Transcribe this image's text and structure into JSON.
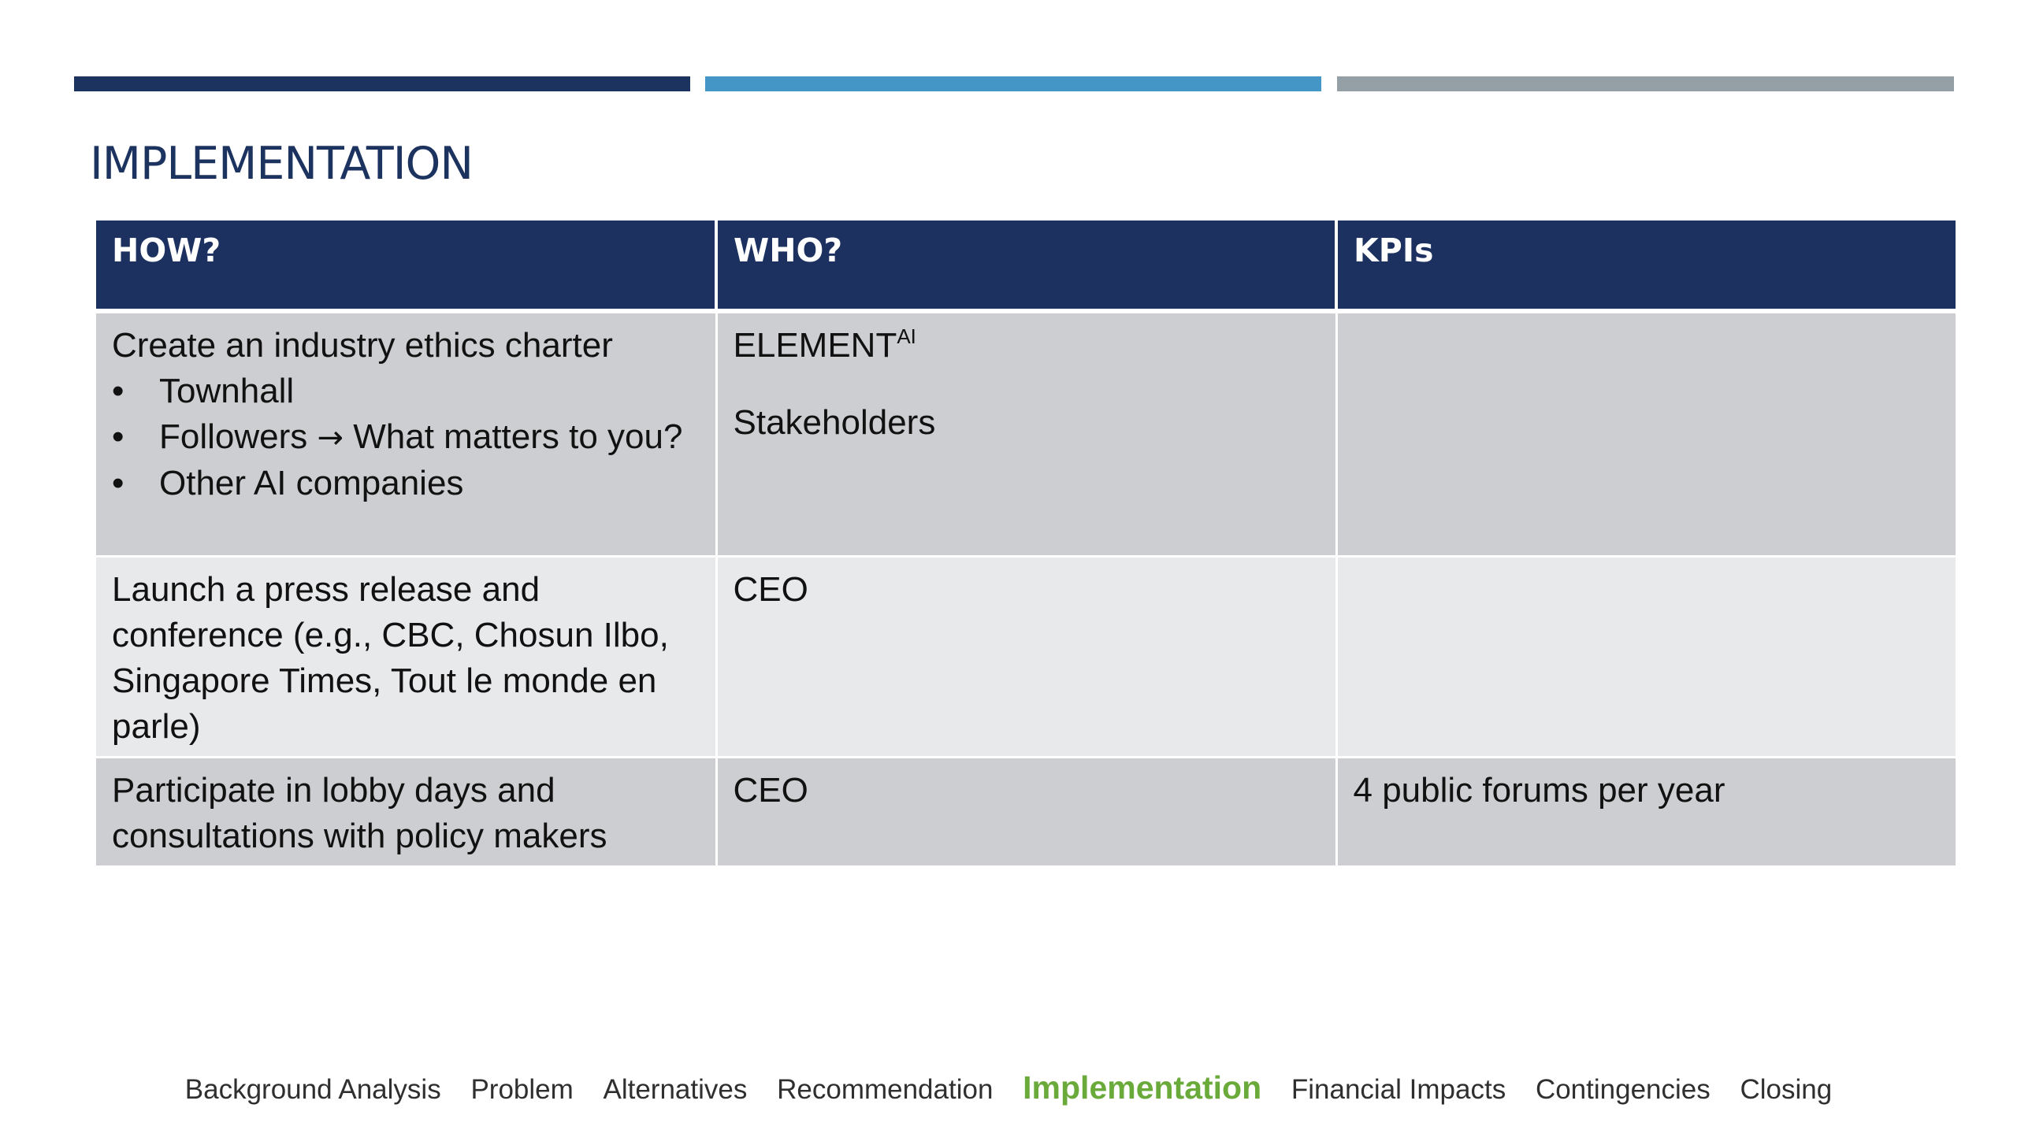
{
  "slide": {
    "title": "IMPLEMENTATION",
    "accent_colors": [
      "#1c3360",
      "#4396c5",
      "#959fa6"
    ]
  },
  "table": {
    "headers": [
      "HOW?",
      "WHO?",
      "KPIs"
    ],
    "rows": [
      {
        "how_intro": "Create an industry ethics charter",
        "how_bullets": [
          {
            "text": "Townhall"
          },
          {
            "text_before": "Followers",
            "arrow": "→",
            "text_after": "What matters to you?"
          },
          {
            "text": "Other AI companies"
          }
        ],
        "who": [
          "ELEMENT",
          "AI",
          "Stakeholders"
        ],
        "kpi": ""
      },
      {
        "how": "Launch a press release and conference (e.g., CBC, Chosun Ilbo, Singapore Times, Tout le monde en parle)",
        "who": "CEO",
        "kpi": ""
      },
      {
        "how": "Participate in lobby days and consultations with policy makers",
        "who": "CEO",
        "kpi": "4 public forums per year"
      }
    ]
  },
  "nav": {
    "items": [
      "Background Analysis",
      "Problem",
      "Alternatives",
      "Recommendation",
      "Implementation",
      "Financial Impacts",
      "Contingencies",
      "Closing"
    ],
    "active": "Implementation",
    "active_color": "#6aaa3a"
  }
}
